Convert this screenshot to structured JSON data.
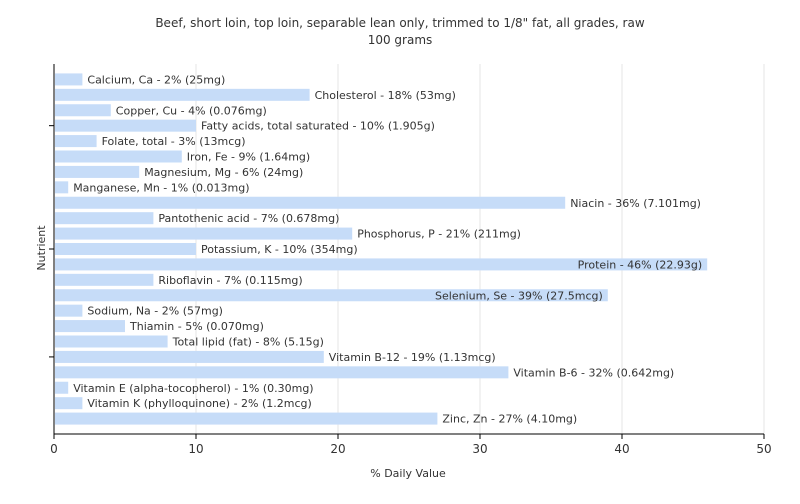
{
  "chart_data": {
    "type": "bar",
    "orientation": "horizontal",
    "title": "Beef, short loin, top loin, separable lean only, trimmed to 1/8\" fat, all grades, raw",
    "subtitle": "100 grams",
    "xlabel": "% Daily Value",
    "ylabel": "Nutrient",
    "xlim": [
      0,
      50
    ],
    "xticks": [
      0,
      10,
      20,
      30,
      40,
      50
    ],
    "grid": true,
    "bar_color": "#c6dcf8",
    "categories": [
      "Calcium, Ca",
      "Cholesterol",
      "Copper, Cu",
      "Fatty acids, total saturated",
      "Folate, total",
      "Iron, Fe",
      "Magnesium, Mg",
      "Manganese, Mn",
      "Niacin",
      "Pantothenic acid",
      "Phosphorus, P",
      "Potassium, K",
      "Protein",
      "Riboflavin",
      "Selenium, Se",
      "Sodium, Na",
      "Thiamin",
      "Total lipid (fat)",
      "Vitamin B-12",
      "Vitamin B-6",
      "Vitamin E (alpha-tocopherol)",
      "Vitamin K (phylloquinone)",
      "Zinc, Zn"
    ],
    "values": [
      2,
      18,
      4,
      10,
      3,
      9,
      6,
      1,
      36,
      7,
      21,
      10,
      46,
      7,
      39,
      2,
      5,
      8,
      19,
      32,
      1,
      2,
      27
    ],
    "labels": [
      "Calcium, Ca - 2% (25mg)",
      "Cholesterol - 18% (53mg)",
      "Copper, Cu - 4% (0.076mg)",
      "Fatty acids, total saturated - 10% (1.905g)",
      "Folate, total - 3% (13mcg)",
      "Iron, Fe - 9% (1.64mg)",
      "Magnesium, Mg - 6% (24mg)",
      "Manganese, Mn - 1% (0.013mg)",
      "Niacin - 36% (7.101mg)",
      "Pantothenic acid - 7% (0.678mg)",
      "Phosphorus, P - 21% (211mg)",
      "Potassium, K - 10% (354mg)",
      "Protein - 46% (22.93g)",
      "Riboflavin - 7% (0.115mg)",
      "Selenium, Se - 39% (27.5mcg)",
      "Sodium, Na - 2% (57mg)",
      "Thiamin - 5% (0.070mg)",
      "Total lipid (fat) - 8% (5.15g)",
      "Vitamin B-12 - 19% (1.13mcg)",
      "Vitamin B-6 - 32% (0.642mg)",
      "Vitamin E (alpha-tocopherol) - 1% (0.30mg)",
      "Vitamin K (phylloquinone) - 2% (1.2mcg)",
      "Zinc, Zn - 27% (4.10mg)"
    ]
  }
}
